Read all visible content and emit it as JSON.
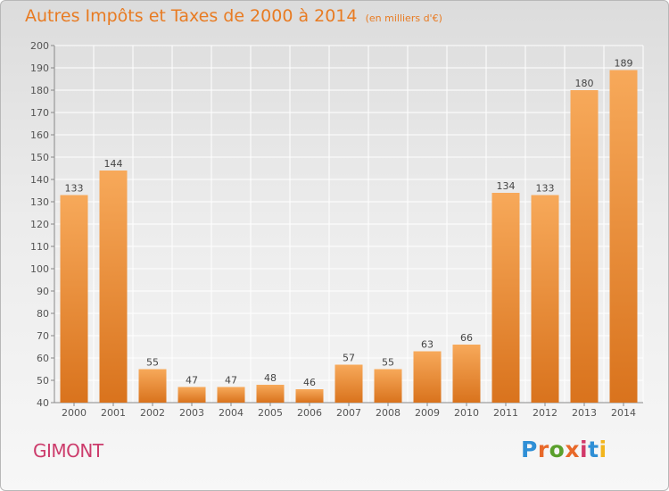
{
  "title": "Autres Impôts et Taxes de 2000 à 2014",
  "unit_note": "(en milliers d'€)",
  "commune": "GIMONT",
  "brand": "Proxiti",
  "colors": {
    "bar_light": "#f7a95a",
    "bar_dark": "#d9731d",
    "title": "#e87b22",
    "commune": "#cc3b6b",
    "grid": "#ffffff"
  },
  "chart_data": {
    "type": "bar",
    "categories": [
      "2000",
      "2001",
      "2002",
      "2003",
      "2004",
      "2005",
      "2006",
      "2007",
      "2008",
      "2009",
      "2010",
      "2011",
      "2012",
      "2013",
      "2014"
    ],
    "values": [
      133,
      144,
      55,
      47,
      47,
      48,
      46,
      57,
      55,
      63,
      66,
      134,
      133,
      180,
      189
    ],
    "ylim": [
      40,
      200
    ],
    "yticks": [
      40,
      50,
      60,
      70,
      80,
      90,
      100,
      110,
      120,
      130,
      140,
      150,
      160,
      170,
      180,
      190,
      200
    ],
    "grid": true,
    "legend": "none"
  }
}
